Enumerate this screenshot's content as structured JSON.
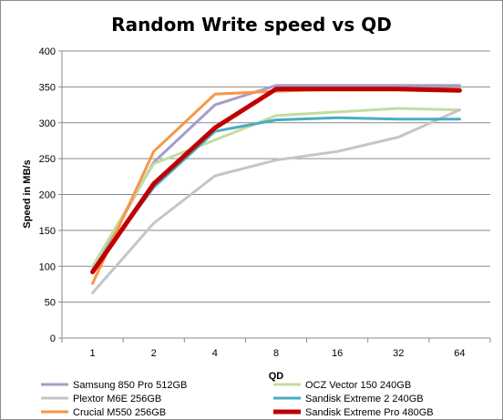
{
  "chart_data": {
    "type": "line",
    "title": "Random Write speed vs QD",
    "xlabel": "QD",
    "ylabel": "Speed in MB/s",
    "categories": [
      "1",
      "2",
      "4",
      "8",
      "16",
      "32",
      "64"
    ],
    "ylim": [
      0,
      400
    ],
    "yticks": [
      "0",
      "50",
      "100",
      "150",
      "200",
      "250",
      "300",
      "350",
      "400"
    ],
    "grid": "horizontal",
    "legend_position": "bottom",
    "series": [
      {
        "name": "Samsung 850 Pro 512GB",
        "color": "#a99bc9",
        "width": 3,
        "values": [
          93,
          245,
          325,
          352,
          352,
          352,
          352
        ]
      },
      {
        "name": "OCZ Vector 150 240GB",
        "color": "#c3dca1",
        "width": 3,
        "values": [
          100,
          243,
          276,
          310,
          315,
          320,
          318
        ]
      },
      {
        "name": "Plextor M6E 256GB",
        "color": "#c5c5c5",
        "width": 3,
        "values": [
          63,
          160,
          226,
          248,
          260,
          280,
          318
        ]
      },
      {
        "name": "Sandisk Extreme 2 240GB",
        "color": "#4aacc6",
        "width": 3,
        "values": [
          95,
          210,
          288,
          304,
          307,
          305,
          305
        ]
      },
      {
        "name": "Crucial M550 256GB",
        "color": "#f79646",
        "width": 3,
        "values": [
          76,
          260,
          340,
          344,
          347,
          348,
          347
        ]
      },
      {
        "name": "Sandisk Extreme Pro 480GB",
        "color": "#c00000",
        "width": 5,
        "values": [
          92,
          215,
          293,
          347,
          347,
          347,
          345
        ]
      }
    ]
  }
}
